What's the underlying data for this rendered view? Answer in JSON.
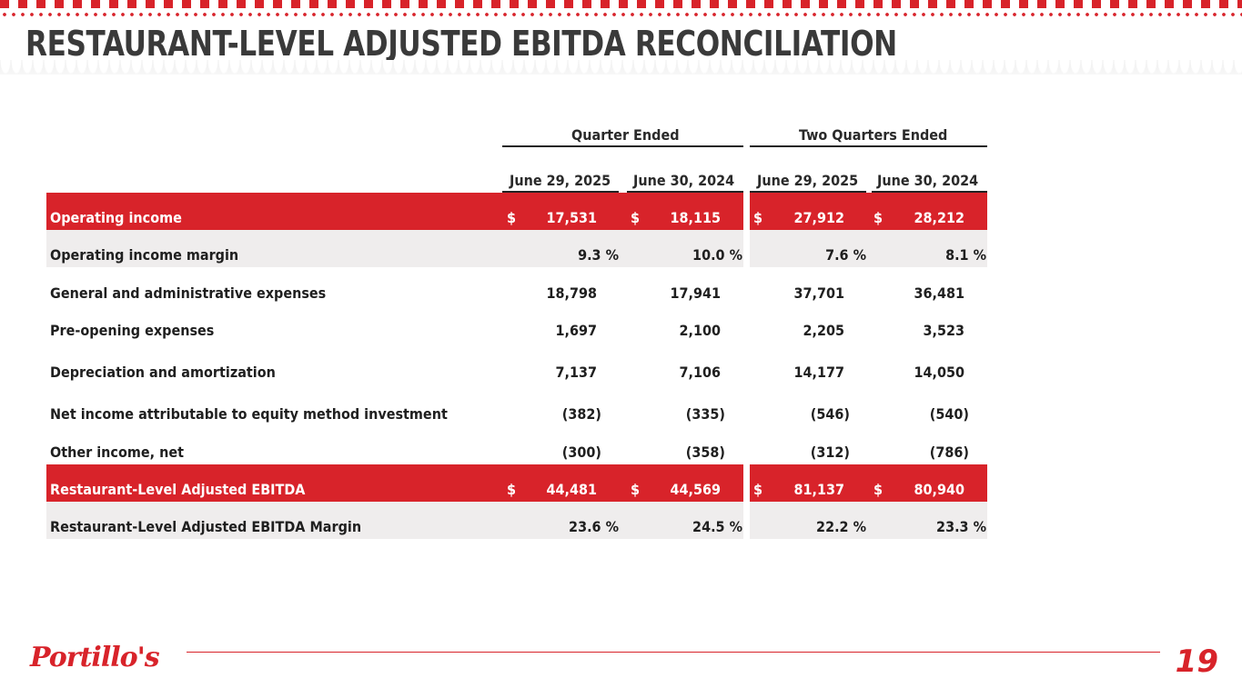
{
  "title": "RESTAURANT-LEVEL ADJUSTED EBITDA RECONCILIATION",
  "colors": {
    "accent": "#d8232a",
    "stripe": "#efeded",
    "text": "#1f1f1f"
  },
  "table": {
    "group_headers": [
      "Quarter Ended",
      "Two Quarters Ended"
    ],
    "columns": [
      "June 29, 2025",
      "June 30, 2024",
      "June 29, 2025",
      "June 30, 2024"
    ],
    "rows": [
      {
        "label": "Operating income",
        "cells": [
          {
            "cur": "$",
            "val": "17,531"
          },
          {
            "cur": "$",
            "val": "18,115"
          },
          {
            "cur": "$",
            "val": "27,912"
          },
          {
            "cur": "$",
            "val": "28,212"
          }
        ]
      },
      {
        "label": "Operating income margin",
        "cells": [
          {
            "val": "9.3 %"
          },
          {
            "val": "10.0 %"
          },
          {
            "val": "7.6 %"
          },
          {
            "val": "8.1 %"
          }
        ]
      },
      {
        "label": "General and administrative expenses",
        "cells": [
          {
            "val": "18,798"
          },
          {
            "val": "17,941"
          },
          {
            "val": "37,701"
          },
          {
            "val": "36,481"
          }
        ]
      },
      {
        "label": "Pre-opening expenses",
        "cells": [
          {
            "val": "1,697"
          },
          {
            "val": "2,100"
          },
          {
            "val": "2,205"
          },
          {
            "val": "3,523"
          }
        ]
      },
      {
        "label": "Depreciation and amortization",
        "cells": [
          {
            "val": "7,137"
          },
          {
            "val": "7,106"
          },
          {
            "val": "14,177"
          },
          {
            "val": "14,050"
          }
        ]
      },
      {
        "label": "Net income attributable to equity method investment",
        "cells": [
          {
            "val": "(382)"
          },
          {
            "val": "(335)"
          },
          {
            "val": "(546)"
          },
          {
            "val": "(540)"
          }
        ]
      },
      {
        "label": "Other income, net",
        "cells": [
          {
            "val": "(300)"
          },
          {
            "val": "(358)"
          },
          {
            "val": "(312)"
          },
          {
            "val": "(786)"
          }
        ]
      },
      {
        "label": "Restaurant-Level Adjusted EBITDA",
        "cells": [
          {
            "cur": "$",
            "val": "44,481"
          },
          {
            "cur": "$",
            "val": "44,569"
          },
          {
            "cur": "$",
            "val": "81,137"
          },
          {
            "cur": "$",
            "val": "80,940"
          }
        ]
      },
      {
        "label": "Restaurant-Level Adjusted EBITDA Margin",
        "cells": [
          {
            "val": "23.6 %"
          },
          {
            "val": "24.5 %"
          },
          {
            "val": "22.2 %"
          },
          {
            "val": "23.3 %"
          }
        ]
      }
    ]
  },
  "footer": {
    "logo_text": "Portillo's",
    "page_number": "19"
  }
}
